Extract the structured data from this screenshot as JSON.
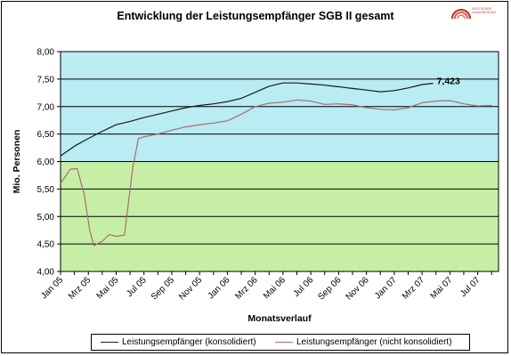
{
  "chart_data": {
    "type": "line",
    "title": "Entwicklung der Leistungsempfänger SGB II gesamt",
    "xlabel": "Monatsverlauf",
    "ylabel": "Mio. Personen",
    "ylim": [
      4.0,
      8.0
    ],
    "yticks": [
      "4,00",
      "4,50",
      "5,00",
      "5,50",
      "6,00",
      "6,50",
      "7,00",
      "7,50",
      "8,00"
    ],
    "xticks": [
      {
        "index": 0,
        "label": "Jan 05"
      },
      {
        "index": 2,
        "label": "Mrz 05"
      },
      {
        "index": 4,
        "label": "Mai 05"
      },
      {
        "index": 6,
        "label": "Jul 05"
      },
      {
        "index": 8,
        "label": "Sep 05"
      },
      {
        "index": 10,
        "label": "Nov 05"
      },
      {
        "index": 12,
        "label": "Jan 06"
      },
      {
        "index": 14,
        "label": "Mrz 06"
      },
      {
        "index": 16,
        "label": "Mai 06"
      },
      {
        "index": 18,
        "label": "Jul 06"
      },
      {
        "index": 20,
        "label": "Sep 06"
      },
      {
        "index": 22,
        "label": "Nov 06"
      },
      {
        "index": 24,
        "label": "Jan 07"
      },
      {
        "index": 26,
        "label": "Mrz 07"
      },
      {
        "index": 28,
        "label": "Mai 07"
      },
      {
        "index": 30,
        "label": "Jul 07"
      }
    ],
    "background_bands": [
      {
        "from": 4.0,
        "to": 6.0,
        "color": "#c6efa5"
      },
      {
        "from": 6.0,
        "to": 8.0,
        "color": "#b9ecf3"
      }
    ],
    "grid": true,
    "legend_position": "bottom",
    "series": [
      {
        "name": "Leistungsempfänger (konsolidiert)",
        "color": "#1a1a1a",
        "points": [
          [
            0,
            6.1
          ],
          [
            1,
            6.28
          ],
          [
            2,
            6.42
          ],
          [
            3,
            6.55
          ],
          [
            4,
            6.67
          ],
          [
            5,
            6.73
          ],
          [
            6,
            6.8
          ],
          [
            7,
            6.86
          ],
          [
            8,
            6.92
          ],
          [
            9,
            6.98
          ],
          [
            10,
            7.02
          ],
          [
            11,
            7.05
          ],
          [
            12,
            7.09
          ],
          [
            13,
            7.15
          ],
          [
            14,
            7.26
          ],
          [
            15,
            7.37
          ],
          [
            16,
            7.43
          ],
          [
            17,
            7.43
          ],
          [
            18,
            7.41
          ],
          [
            19,
            7.39
          ],
          [
            20,
            7.36
          ],
          [
            21,
            7.33
          ],
          [
            22,
            7.3
          ],
          [
            23,
            7.27
          ],
          [
            24,
            7.29
          ],
          [
            25,
            7.34
          ],
          [
            26,
            7.4
          ],
          [
            26.8,
            7.423
          ]
        ],
        "annotation": {
          "label": "7,423",
          "at_index": 26.8,
          "value": 7.423
        }
      },
      {
        "name": "Leistungsempfänger (nicht konsolidiert)",
        "color": "#a86b74",
        "points": [
          [
            0,
            5.6
          ],
          [
            0.7,
            5.86
          ],
          [
            1.2,
            5.87
          ],
          [
            1.7,
            5.4
          ],
          [
            2.1,
            4.75
          ],
          [
            2.4,
            4.47
          ],
          [
            3,
            4.55
          ],
          [
            3.5,
            4.67
          ],
          [
            4,
            4.64
          ],
          [
            4.6,
            4.66
          ],
          [
            5.2,
            5.9
          ],
          [
            5.6,
            6.42
          ],
          [
            6,
            6.45
          ],
          [
            7,
            6.5
          ],
          [
            8,
            6.57
          ],
          [
            9,
            6.63
          ],
          [
            10,
            6.67
          ],
          [
            11,
            6.7
          ],
          [
            12,
            6.74
          ],
          [
            13,
            6.86
          ],
          [
            14,
            7.0
          ],
          [
            15,
            7.06
          ],
          [
            16,
            7.08
          ],
          [
            17,
            7.12
          ],
          [
            18,
            7.1
          ],
          [
            19,
            7.04
          ],
          [
            20,
            7.05
          ],
          [
            21,
            7.03
          ],
          [
            22,
            6.98
          ],
          [
            23,
            6.95
          ],
          [
            24,
            6.94
          ],
          [
            25,
            6.98
          ],
          [
            26,
            7.07
          ],
          [
            27,
            7.1
          ],
          [
            28,
            7.11
          ],
          [
            29,
            7.05
          ],
          [
            30,
            7.01
          ],
          [
            31,
            7.02
          ]
        ]
      }
    ]
  },
  "logo": {
    "line1": "DEUTSCHER",
    "line2": "LANDKREISTAG",
    "colors": [
      "#c0392b",
      "#e57373"
    ]
  }
}
